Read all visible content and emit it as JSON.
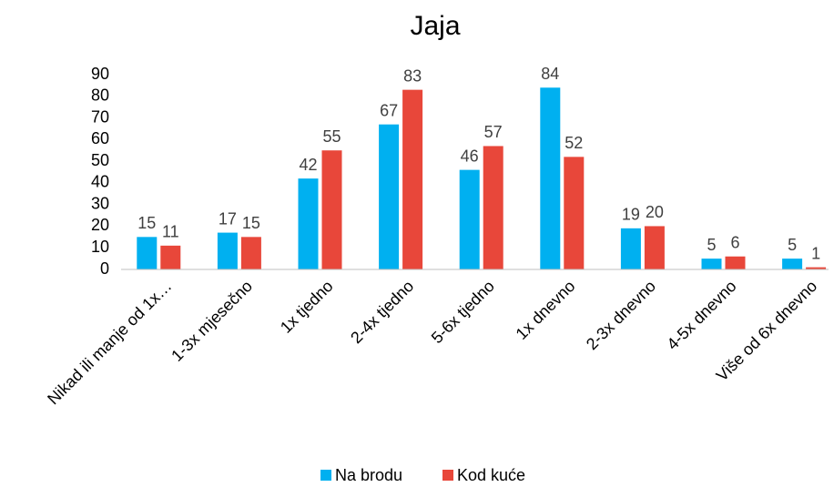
{
  "chart_data": {
    "type": "bar",
    "title": "Jaja",
    "categories": [
      "Nikad ili manje od 1x…",
      "1-3x mjesečno",
      "1x tjedno",
      "2-4x tjedno",
      "5-6x tjedno",
      "1x dnevno",
      "2-3x dnevno",
      "4-5x dnevno",
      "Više od 6x dnevno"
    ],
    "series": [
      {
        "name": "Na brodu",
        "color": "#00b0f0",
        "values": [
          15,
          17,
          42,
          67,
          46,
          84,
          19,
          5,
          5
        ]
      },
      {
        "name": "Kod kuće",
        "color": "#e8473a",
        "values": [
          11,
          15,
          55,
          83,
          57,
          52,
          20,
          6,
          1
        ]
      }
    ],
    "ylim": [
      0,
      90
    ],
    "yticks": [
      0,
      10,
      20,
      30,
      40,
      50,
      60,
      70,
      80,
      90
    ],
    "grid": false,
    "legend": "bottom",
    "data_labels": true
  }
}
